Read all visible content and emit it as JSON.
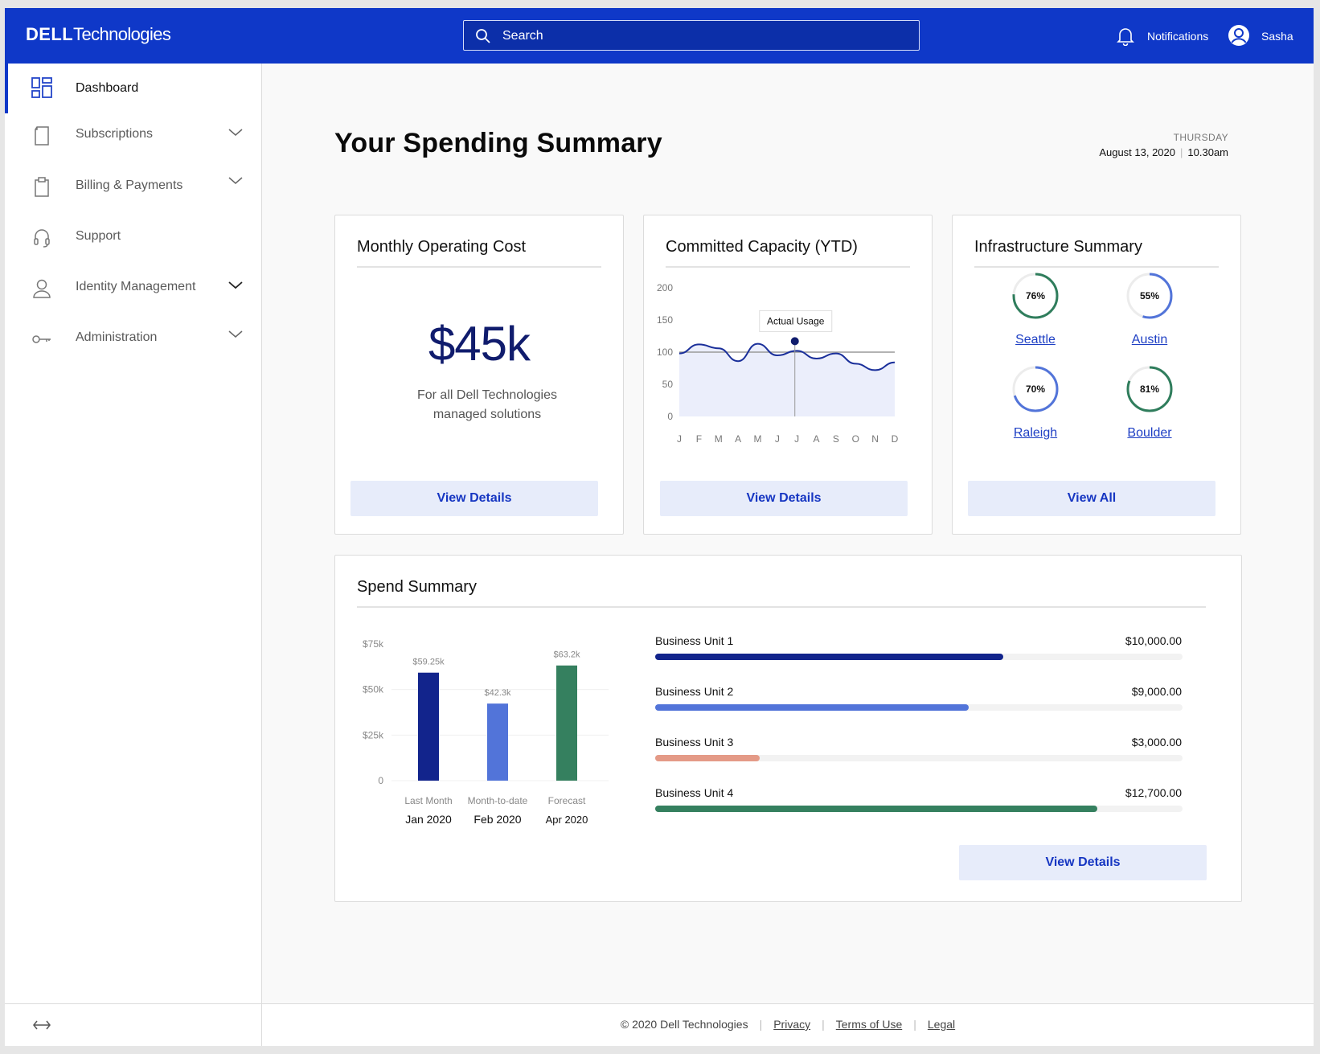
{
  "header": {
    "logo_brand": "DELL",
    "logo_suffix": "Technologies",
    "search_placeholder": "Search",
    "notifications_label": "Notifications",
    "user_name": "Sasha"
  },
  "sidebar": {
    "items": [
      {
        "label": "Dashboard",
        "icon": "dashboard-icon",
        "active": true
      },
      {
        "label": "Subscriptions",
        "icon": "subscriptions-icon",
        "expandable": true
      },
      {
        "label": "Billing & Payments",
        "icon": "clipboard-icon",
        "expandable": true
      },
      {
        "label": "Support",
        "icon": "headset-icon"
      },
      {
        "label": "Identity Management",
        "icon": "person-icon",
        "expandable": true
      },
      {
        "label": "Administration",
        "icon": "key-icon",
        "expandable": true
      }
    ]
  },
  "page": {
    "title": "Your Spending Summary",
    "day": "THURSDAY",
    "date": "August 13, 2020",
    "time": "10.30am"
  },
  "cards": {
    "monthly": {
      "title": "Monthly Operating Cost",
      "amount": "$45k",
      "desc_line1": "For all Dell Technologies",
      "desc_line2": "managed solutions",
      "button": "View Details"
    },
    "capacity": {
      "title": "Committed Capacity (YTD)",
      "tooltip": "Actual Usage",
      "button": "View Details"
    },
    "infra": {
      "title": "Infrastructure Summary",
      "sites": [
        {
          "name": "Seattle",
          "percent": 76,
          "label": "76%",
          "color": "#2f7d5c"
        },
        {
          "name": "Austin",
          "percent": 55,
          "label": "55%",
          "color": "#5274d9"
        },
        {
          "name": "Raleigh",
          "percent": 70,
          "label": "70%",
          "color": "#5274d9"
        },
        {
          "name": "Boulder",
          "percent": 81,
          "label": "81%",
          "color": "#2f7d5c"
        }
      ],
      "button": "View All"
    }
  },
  "spend": {
    "title": "Spend Summary",
    "units": [
      {
        "name": "Business Unit 1",
        "value": "$10,000.00",
        "fraction": 0.66,
        "color": "#12248c"
      },
      {
        "name": "Business Unit 2",
        "value": "$9,000.00",
        "fraction": 0.595,
        "color": "#5274d9"
      },
      {
        "name": "Business Unit 3",
        "value": "$3,000.00",
        "fraction": 0.198,
        "color": "#e49a87"
      },
      {
        "name": "Business Unit 4",
        "value": "$12,700.00",
        "fraction": 0.838,
        "color": "#35805f"
      }
    ],
    "button": "View Details"
  },
  "chart_data": [
    {
      "type": "line",
      "title": "Committed Capacity (YTD)",
      "categories": [
        "J",
        "F",
        "M",
        "A",
        "M",
        "J",
        "J",
        "A",
        "S",
        "O",
        "N",
        "D"
      ],
      "ylim": [
        0,
        200
      ],
      "yticks": [
        "200",
        "150",
        "100",
        "50",
        "0"
      ],
      "series": [
        {
          "name": "Actual Usage",
          "values": [
            98,
            112,
            106,
            86,
            113,
            95,
            102,
            90,
            98,
            82,
            72,
            84
          ]
        }
      ],
      "reference_line": 100,
      "highlight": {
        "category_index": 5.9,
        "value": 117
      }
    },
    {
      "type": "bar",
      "categories": [
        "Last Month",
        "Month-to-date",
        "Forecast"
      ],
      "dates": [
        "Jan 2020",
        "Feb 2020",
        "Apr 2020"
      ],
      "values": [
        59.25,
        42.3,
        63.2
      ],
      "value_labels": [
        "$59.25k",
        "$42.3k",
        "$63.2k"
      ],
      "colors": [
        "#12248c",
        "#5274d9",
        "#35805f"
      ],
      "ylim": [
        0,
        75
      ],
      "yticks": [
        "$75k",
        "$50k",
        "$25k",
        "0"
      ],
      "unit": "$k"
    }
  ],
  "footer": {
    "copyright": "© 2020 Dell Technologies",
    "links": [
      "Privacy",
      "Terms of Use",
      "Legal"
    ]
  }
}
